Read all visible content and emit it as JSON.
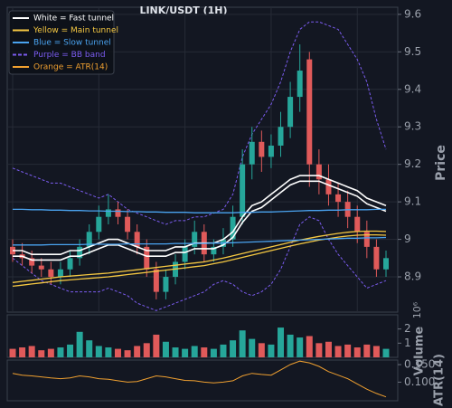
{
  "chart_data": {
    "type": "candlestick",
    "title": "LINK/USDT (1H)",
    "y_label": "Price",
    "up_color": "#26a69a",
    "down_color": "#e05a5a",
    "grid": true,
    "ylim": [
      8.806,
      9.619
    ],
    "yticks": [
      8.9,
      9.0,
      9.1,
      9.2,
      9.3,
      9.4,
      9.5,
      9.6
    ],
    "open": [
      8.98,
      8.96,
      8.95,
      8.93,
      8.92,
      8.9,
      8.92,
      8.95,
      8.98,
      9.02,
      9.06,
      9.08,
      9.06,
      9.02,
      8.98,
      8.92,
      8.86,
      8.9,
      8.94,
      8.98,
      9.02,
      8.96,
      8.98,
      9.0,
      9.06,
      9.2,
      9.26,
      9.22,
      9.25,
      9.3,
      9.38,
      9.48,
      9.2,
      9.16,
      9.12,
      9.1,
      9.06,
      9.02,
      8.98,
      8.92
    ],
    "high": [
      9.0,
      8.99,
      8.97,
      8.95,
      8.94,
      8.94,
      8.97,
      9.0,
      9.04,
      9.09,
      9.12,
      9.1,
      9.08,
      9.04,
      9.0,
      8.94,
      8.92,
      8.96,
      9.0,
      9.05,
      9.04,
      9.0,
      9.03,
      9.09,
      9.24,
      9.3,
      9.29,
      9.28,
      9.34,
      9.42,
      9.52,
      9.5,
      9.24,
      9.2,
      9.15,
      9.13,
      9.09,
      9.05,
      9.0,
      8.97
    ],
    "low": [
      8.94,
      8.93,
      8.91,
      8.9,
      8.88,
      8.88,
      8.9,
      8.93,
      8.96,
      9.0,
      9.04,
      9.04,
      9.0,
      8.96,
      8.9,
      8.84,
      8.84,
      8.88,
      8.92,
      8.96,
      8.94,
      8.94,
      8.96,
      8.98,
      9.04,
      9.16,
      9.18,
      9.19,
      9.22,
      9.27,
      9.34,
      9.14,
      9.12,
      9.09,
      9.06,
      9.03,
      8.99,
      8.95,
      8.9,
      8.9
    ],
    "close": [
      8.96,
      8.95,
      8.93,
      8.92,
      8.9,
      8.92,
      8.95,
      8.98,
      9.02,
      9.06,
      9.08,
      9.06,
      9.02,
      8.98,
      8.92,
      8.86,
      8.9,
      8.94,
      8.98,
      9.02,
      8.96,
      8.98,
      9.0,
      9.06,
      9.2,
      9.26,
      9.22,
      9.25,
      9.3,
      9.38,
      9.45,
      9.2,
      9.16,
      9.12,
      9.1,
      9.06,
      9.02,
      8.98,
      8.92,
      8.95
    ],
    "overlays": [
      {
        "name": "White = Fast tunnel",
        "color": "#ffffff",
        "dashed": false,
        "upper": [
          8.97,
          8.97,
          8.96,
          8.96,
          8.96,
          8.96,
          8.97,
          8.97,
          8.98,
          8.99,
          9.0,
          9.0,
          8.99,
          8.98,
          8.97,
          8.97,
          8.97,
          8.98,
          8.98,
          8.99,
          8.99,
          8.99,
          9.0,
          9.02,
          9.06,
          9.09,
          9.1,
          9.12,
          9.14,
          9.16,
          9.17,
          9.17,
          9.17,
          9.16,
          9.15,
          9.14,
          9.13,
          9.11,
          9.1,
          9.09
        ],
        "lower": [
          8.955,
          8.955,
          8.945,
          8.945,
          8.945,
          8.945,
          8.955,
          8.955,
          8.965,
          8.975,
          8.985,
          8.985,
          8.975,
          8.965,
          8.955,
          8.955,
          8.955,
          8.965,
          8.965,
          8.975,
          8.975,
          8.975,
          8.985,
          9.005,
          9.045,
          9.075,
          9.085,
          9.105,
          9.125,
          9.145,
          9.155,
          9.155,
          9.155,
          9.145,
          9.135,
          9.125,
          9.115,
          9.095,
          9.085,
          9.075
        ]
      },
      {
        "name": "Yellow = Main tunnel",
        "color": "#f5c842",
        "dashed": false,
        "upper": [
          8.885,
          8.888,
          8.891,
          8.894,
          8.897,
          8.9,
          8.902,
          8.904,
          8.906,
          8.908,
          8.91,
          8.913,
          8.916,
          8.919,
          8.922,
          8.925,
          8.928,
          8.931,
          8.934,
          8.937,
          8.94,
          8.945,
          8.95,
          8.956,
          8.962,
          8.968,
          8.974,
          8.98,
          8.986,
          8.992,
          8.998,
          9.003,
          9.008,
          9.012,
          9.016,
          9.019,
          9.021,
          9.022,
          9.022,
          9.021
        ],
        "lower": [
          8.875,
          8.878,
          8.881,
          8.884,
          8.887,
          8.89,
          8.892,
          8.894,
          8.896,
          8.898,
          8.9,
          8.903,
          8.906,
          8.909,
          8.912,
          8.915,
          8.918,
          8.921,
          8.924,
          8.927,
          8.93,
          8.935,
          8.94,
          8.946,
          8.952,
          8.958,
          8.964,
          8.97,
          8.976,
          8.982,
          8.988,
          8.993,
          8.998,
          9.002,
          9.006,
          9.009,
          9.011,
          9.012,
          9.012,
          9.011
        ]
      },
      {
        "name": "Blue = Slow tunnel",
        "color": "#4aa3f0",
        "dashed": false,
        "upper": [
          9.08,
          9.08,
          9.079,
          9.079,
          9.078,
          9.078,
          9.077,
          9.077,
          9.076,
          9.076,
          9.075,
          9.075,
          9.074,
          9.074,
          9.073,
          9.073,
          9.072,
          9.072,
          9.072,
          9.071,
          9.071,
          9.071,
          9.071,
          9.071,
          9.072,
          9.072,
          9.073,
          9.073,
          9.074,
          9.075,
          9.076,
          9.077,
          9.077,
          9.078,
          9.078,
          9.079,
          9.079,
          9.079,
          9.08,
          9.08
        ],
        "lower": [
          8.985,
          8.985,
          8.985,
          8.985,
          8.986,
          8.986,
          8.986,
          8.986,
          8.987,
          8.987,
          8.987,
          8.987,
          8.988,
          8.988,
          8.988,
          8.988,
          8.988,
          8.989,
          8.989,
          8.989,
          8.989,
          8.99,
          8.99,
          8.991,
          8.992,
          8.993,
          8.994,
          8.995,
          8.996,
          8.997,
          8.998,
          8.999,
          9.0,
          9.001,
          9.002,
          9.003,
          9.003,
          9.004,
          9.004,
          9.005
        ]
      },
      {
        "name": "Purple = BB band",
        "color": "#7b5cf0",
        "dashed": true,
        "upper": [
          9.19,
          9.18,
          9.17,
          9.16,
          9.15,
          9.15,
          9.14,
          9.13,
          9.12,
          9.11,
          9.12,
          9.1,
          9.08,
          9.07,
          9.06,
          9.05,
          9.04,
          9.05,
          9.05,
          9.06,
          9.06,
          9.07,
          9.08,
          9.12,
          9.22,
          9.28,
          9.32,
          9.36,
          9.42,
          9.5,
          9.56,
          9.58,
          9.58,
          9.57,
          9.56,
          9.52,
          9.48,
          9.42,
          9.32,
          9.24
        ],
        "lower": [
          8.95,
          8.93,
          8.91,
          8.89,
          8.88,
          8.87,
          8.86,
          8.86,
          8.86,
          8.86,
          8.87,
          8.86,
          8.85,
          8.83,
          8.82,
          8.81,
          8.82,
          8.83,
          8.84,
          8.85,
          8.86,
          8.88,
          8.89,
          8.88,
          8.86,
          8.85,
          8.86,
          8.88,
          8.92,
          8.98,
          9.04,
          9.06,
          9.05,
          9.0,
          8.96,
          8.93,
          8.9,
          8.87,
          8.88,
          8.89
        ]
      }
    ],
    "volume": {
      "y_label": "Volume",
      "offset_label": "10⁶",
      "ylim": [
        0,
        3.0
      ],
      "yticks": [
        1,
        2
      ],
      "values": [
        0.6,
        0.7,
        0.8,
        0.5,
        0.6,
        0.7,
        0.9,
        1.8,
        1.2,
        0.8,
        0.7,
        0.6,
        0.5,
        0.8,
        1.0,
        1.6,
        1.1,
        0.7,
        0.6,
        0.8,
        0.7,
        0.6,
        0.9,
        1.2,
        1.9,
        1.3,
        1.0,
        0.9,
        2.1,
        1.6,
        1.4,
        1.5,
        1.0,
        1.1,
        0.8,
        0.9,
        0.7,
        0.9,
        0.8,
        0.6
      ]
    },
    "atr": {
      "name": "Orange = ATR(14)",
      "y_label": "ATR(14)",
      "color": "#f0a030",
      "ylim": [
        0.047,
        0.163
      ],
      "yticks": [
        {
          "value": 0.1,
          "label": "0.100"
        },
        {
          "value": 0.15,
          "label": "0.150"
        }
      ],
      "values": [
        0.125,
        0.12,
        0.118,
        0.115,
        0.112,
        0.11,
        0.112,
        0.118,
        0.115,
        0.11,
        0.108,
        0.104,
        0.1,
        0.102,
        0.11,
        0.118,
        0.115,
        0.11,
        0.105,
        0.104,
        0.1,
        0.098,
        0.1,
        0.104,
        0.118,
        0.125,
        0.122,
        0.12,
        0.135,
        0.15,
        0.16,
        0.155,
        0.145,
        0.13,
        0.12,
        0.11,
        0.095,
        0.08,
        0.068,
        0.058
      ]
    }
  }
}
